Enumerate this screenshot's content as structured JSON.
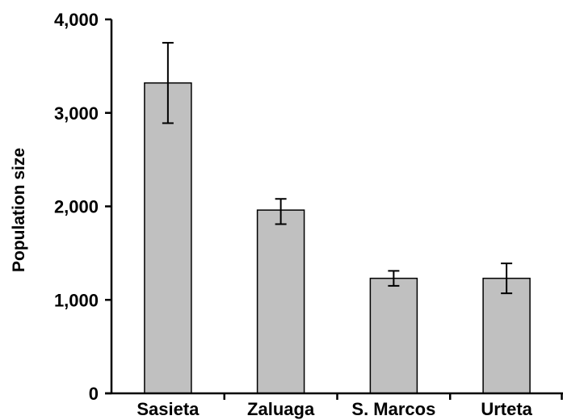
{
  "chart_data": {
    "type": "bar",
    "title": "",
    "xlabel": "",
    "ylabel": "Population size",
    "categories": [
      "Sasieta",
      "Zaluaga",
      "S. Marcos",
      "Urteta"
    ],
    "values": [
      3320,
      1960,
      1230,
      1230
    ],
    "error_low": [
      2890,
      1810,
      1150,
      1070
    ],
    "error_high": [
      3750,
      2080,
      1310,
      1390
    ],
    "ylim": [
      0,
      4000
    ],
    "yticks": [
      0,
      1000,
      2000,
      3000,
      4000
    ],
    "ytick_labels": [
      "0",
      "1,000",
      "2,000",
      "3,000",
      "4,000"
    ],
    "grid": false,
    "legend": "none",
    "bar_color": "#c0c0c0",
    "edge_color": "#000000"
  }
}
